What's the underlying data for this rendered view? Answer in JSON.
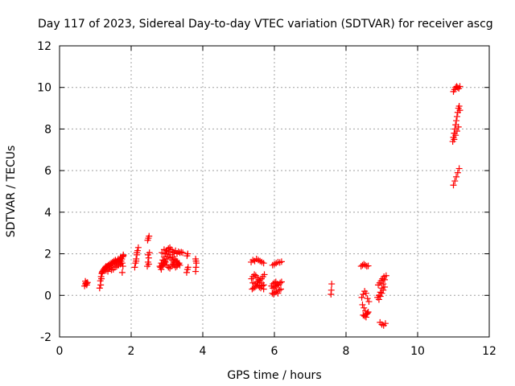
{
  "chart_data": {
    "type": "scatter",
    "title": "Day 117 of 2023, Sidereal Day-to-day VTEC variation (SDTVAR) for receiver ascg",
    "xlabel": "GPS time / hours",
    "ylabel": "SDTVAR / TECUs",
    "xlim": [
      0,
      12
    ],
    "ylim": [
      -2,
      12
    ],
    "xticks": [
      0,
      2,
      4,
      6,
      8,
      10,
      12
    ],
    "yticks": [
      -2,
      0,
      2,
      4,
      6,
      8,
      10,
      12
    ],
    "grid": true,
    "marker": "plus",
    "color": "#ff0000",
    "series": [
      {
        "name": "SDTVAR",
        "x": [
          0.7,
          0.72,
          0.74,
          0.76,
          0.78,
          0.72,
          0.76,
          1.12,
          1.14,
          1.16,
          1.18,
          1.2,
          1.22,
          1.24,
          1.26,
          1.28,
          1.3,
          1.15,
          1.17,
          1.19,
          1.32,
          1.34,
          1.36,
          1.38,
          1.4,
          1.42,
          1.44,
          1.46,
          1.48,
          1.5,
          1.52,
          1.54,
          1.56,
          1.58,
          1.6,
          1.62,
          1.64,
          1.66,
          1.68,
          1.7,
          1.72,
          1.74,
          1.76,
          1.78,
          1.3,
          1.4,
          1.5,
          1.6,
          1.7,
          1.35,
          1.45,
          1.55,
          1.65,
          1.75,
          1.75,
          1.77,
          1.78,
          2.1,
          2.12,
          2.14,
          2.16,
          2.18,
          2.2,
          2.14,
          2.16,
          2.45,
          2.47,
          2.49,
          2.51,
          2.46,
          2.48,
          2.5,
          2.47,
          2.49,
          2.8,
          2.84,
          2.88,
          2.92,
          2.96,
          3.0,
          3.04,
          3.08,
          3.12,
          3.16,
          3.2,
          3.24,
          3.28,
          3.32,
          3.36,
          3.4,
          3.44,
          2.82,
          2.86,
          2.9,
          2.94,
          2.98,
          3.02,
          3.06,
          3.1,
          3.14,
          3.18,
          3.22,
          3.26,
          3.3,
          2.84,
          2.88,
          2.92,
          2.96,
          3.0,
          3.04,
          3.08,
          3.12,
          3.16,
          3.2,
          3.24,
          3.28,
          3.32,
          3.36,
          2.86,
          2.92,
          2.98,
          3.04,
          3.1,
          3.16,
          3.22,
          3.28,
          3.34,
          3.55,
          3.57,
          3.59,
          3.56,
          3.58,
          3.8,
          3.81,
          3.82,
          3.8,
          3.81,
          5.35,
          5.4,
          5.45,
          5.5,
          5.55,
          5.6,
          5.65,
          5.7,
          5.36,
          5.4,
          5.44,
          5.48,
          5.52,
          5.56,
          5.6,
          5.64,
          5.68,
          5.72,
          5.38,
          5.42,
          5.46,
          5.5,
          5.54,
          5.58,
          5.62,
          5.66,
          5.7,
          5.4,
          5.46,
          5.52,
          5.58,
          5.64,
          5.7,
          5.95,
          6.0,
          6.05,
          6.1,
          6.15,
          6.2,
          5.92,
          5.96,
          6.0,
          6.04,
          6.08,
          6.12,
          6.16,
          6.2,
          5.94,
          5.98,
          6.02,
          6.06,
          6.1,
          6.14,
          6.18,
          5.96,
          6.0,
          6.04,
          6.08,
          7.58,
          7.59,
          7.6,
          8.42,
          8.46,
          8.5,
          8.54,
          8.58,
          8.62,
          8.44,
          8.48,
          8.52,
          8.56,
          8.6,
          8.64,
          8.46,
          8.5,
          8.54,
          8.58,
          8.62,
          8.48,
          8.52,
          8.56,
          8.6,
          8.95,
          9.0,
          9.05,
          9.1,
          8.92,
          8.96,
          9.0,
          9.04,
          9.08,
          8.9,
          8.94,
          8.98,
          9.02,
          9.06,
          8.88,
          8.92,
          8.96,
          9.0,
          9.04,
          9.08,
          9.12,
          10.98,
          11.0,
          11.02,
          11.04,
          11.06,
          11.08,
          11.1,
          11.12,
          11.14,
          11.16,
          11.18,
          11.0,
          11.04,
          11.08,
          11.12,
          11.16,
          11.02,
          11.06,
          11.1,
          11.14,
          11.0,
          11.03,
          11.06,
          11.09,
          11.12,
          11.15,
          11.18
        ],
        "y": [
          0.45,
          0.55,
          0.6,
          0.5,
          0.62,
          0.68,
          0.58,
          0.35,
          0.7,
          0.9,
          1.05,
          1.15,
          1.2,
          1.25,
          1.3,
          1.35,
          1.4,
          0.5,
          0.8,
          1.1,
          1.35,
          1.4,
          1.45,
          1.38,
          1.5,
          1.42,
          1.55,
          1.48,
          1.6,
          1.52,
          1.65,
          1.58,
          1.7,
          1.62,
          1.55,
          1.68,
          1.75,
          1.6,
          1.72,
          1.8,
          1.65,
          1.75,
          1.85,
          1.9,
          1.2,
          1.3,
          1.25,
          1.4,
          1.5,
          1.15,
          1.22,
          1.35,
          1.45,
          1.55,
          1.1,
          1.4,
          1.95,
          1.35,
          1.55,
          1.75,
          1.95,
          2.15,
          2.3,
          1.65,
          2.05,
          1.4,
          1.6,
          1.8,
          2.05,
          2.65,
          2.75,
          2.85,
          1.95,
          1.5,
          1.4,
          1.55,
          1.7,
          1.85,
          2.0,
          2.15,
          2.25,
          2.3,
          2.2,
          2.1,
          2.05,
          2.15,
          2.0,
          2.1,
          2.05,
          2.08,
          2.05,
          1.35,
          1.45,
          1.55,
          1.65,
          1.75,
          1.85,
          1.95,
          1.8,
          1.7,
          1.6,
          1.75,
          1.65,
          1.55,
          1.25,
          1.4,
          1.5,
          1.6,
          1.45,
          1.35,
          1.3,
          1.4,
          1.5,
          1.45,
          1.35,
          1.4,
          1.5,
          1.45,
          2.05,
          2.2,
          2.15,
          2.1,
          1.95,
          1.85,
          1.7,
          1.6,
          1.55,
          1.1,
          1.25,
          1.35,
          1.9,
          2.0,
          1.15,
          1.35,
          1.55,
          1.75,
          1.65,
          1.6,
          1.7,
          1.65,
          1.75,
          1.7,
          1.65,
          1.6,
          1.55,
          0.8,
          0.9,
          1.0,
          0.95,
          0.85,
          0.75,
          0.7,
          0.8,
          0.9,
          1.0,
          0.3,
          0.35,
          0.4,
          0.45,
          0.5,
          0.4,
          0.35,
          0.45,
          0.5,
          0.6,
          0.55,
          0.65,
          0.7,
          0.6,
          0.3,
          1.45,
          1.5,
          1.55,
          1.6,
          1.58,
          1.62,
          0.45,
          0.55,
          0.6,
          0.65,
          0.55,
          0.5,
          0.6,
          0.65,
          0.1,
          0.05,
          0.15,
          0.2,
          0.1,
          0.25,
          0.3,
          0.35,
          0.4,
          0.45,
          0.5,
          0.05,
          0.25,
          0.55,
          1.4,
          1.45,
          1.5,
          1.45,
          1.4,
          1.42,
          -0.1,
          0.05,
          0.2,
          0.1,
          -0.15,
          -0.3,
          -0.45,
          -0.6,
          -0.75,
          -0.9,
          -0.8,
          -0.95,
          -1.0,
          -1.05,
          -0.85,
          -1.3,
          -1.4,
          -1.45,
          -1.35,
          -0.2,
          -0.05,
          0.1,
          0.25,
          0.4,
          0.5,
          0.6,
          0.7,
          0.8,
          0.9,
          -0.1,
          0.0,
          0.15,
          0.35,
          0.55,
          0.75,
          0.95,
          7.4,
          7.6,
          7.8,
          8.0,
          8.2,
          8.4,
          8.6,
          8.8,
          9.0,
          9.1,
          8.9,
          5.3,
          5.5,
          5.7,
          5.9,
          6.1,
          7.5,
          7.7,
          7.9,
          8.1,
          9.8,
          9.9,
          10.0,
          10.05,
          10.0,
          9.95,
          10.05
        ]
      }
    ]
  }
}
